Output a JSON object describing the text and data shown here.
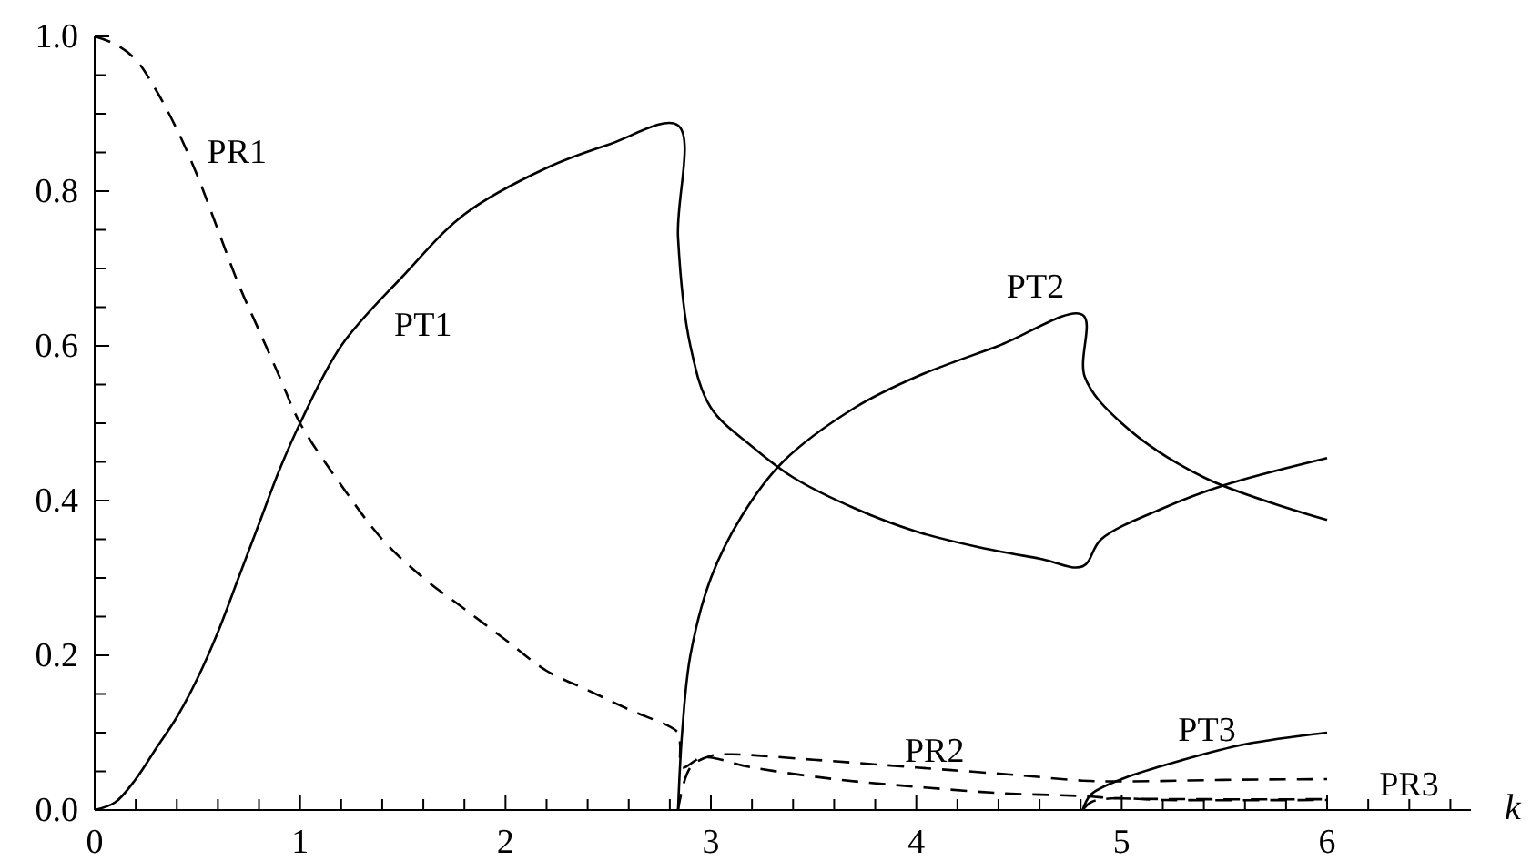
{
  "chart_data": {
    "type": "line",
    "xlabel": "k",
    "xlim": [
      0,
      6.7
    ],
    "ylim": [
      0,
      1.0
    ],
    "xticks": [
      0,
      {
        "value": 0.2,
        "label": null
      },
      {
        "value": 0.4,
        "label": null
      },
      {
        "value": 0.6,
        "label": null
      },
      {
        "value": 0.8,
        "label": null
      },
      1,
      {
        "value": 1.2,
        "label": null
      },
      {
        "value": 1.4,
        "label": null
      },
      {
        "value": 1.6,
        "label": null
      },
      {
        "value": 1.8,
        "label": null
      },
      2,
      {
        "value": 2.2,
        "label": null
      },
      {
        "value": 2.4,
        "label": null
      },
      {
        "value": 2.6,
        "label": null
      },
      {
        "value": 2.8,
        "label": null
      },
      3,
      {
        "value": 3.2,
        "label": null
      },
      {
        "value": 3.4,
        "label": null
      },
      {
        "value": 3.6,
        "label": null
      },
      {
        "value": 3.8,
        "label": null
      },
      4,
      {
        "value": 4.2,
        "label": null
      },
      {
        "value": 4.4,
        "label": null
      },
      {
        "value": 4.6,
        "label": null
      },
      {
        "value": 4.8,
        "label": null
      },
      5,
      {
        "value": 5.2,
        "label": null
      },
      {
        "value": 5.4,
        "label": null
      },
      {
        "value": 5.6,
        "label": null
      },
      {
        "value": 5.8,
        "label": null
      },
      6,
      {
        "value": 6.2,
        "label": null
      },
      {
        "value": 6.4,
        "label": null
      },
      {
        "value": 6.6,
        "label": null
      }
    ],
    "yticks": [
      {
        "value": 0,
        "label": "0.0"
      },
      {
        "value": 0.05,
        "label": null
      },
      {
        "value": 0.1,
        "label": null
      },
      {
        "value": 0.15,
        "label": null
      },
      0.2,
      {
        "value": 0.25,
        "label": null
      },
      {
        "value": 0.3,
        "label": null
      },
      {
        "value": 0.35,
        "label": null
      },
      0.4,
      {
        "value": 0.45,
        "label": null
      },
      {
        "value": 0.5,
        "label": null
      },
      {
        "value": 0.55,
        "label": null
      },
      0.6,
      {
        "value": 0.65,
        "label": null
      },
      {
        "value": 0.7,
        "label": null
      },
      {
        "value": 0.75,
        "label": null
      },
      0.8,
      {
        "value": 0.85,
        "label": null
      },
      {
        "value": 0.9,
        "label": null
      },
      {
        "value": 0.95,
        "label": null
      },
      {
        "value": 1.0,
        "label": "1.0"
      }
    ],
    "grid": false,
    "series": [
      {
        "name": "PT1",
        "color": "#000000",
        "line_style": "solid",
        "x": [
          0,
          0.1,
          0.2,
          0.3,
          0.4,
          0.5,
          0.6,
          0.7,
          0.8,
          0.9,
          1.0,
          1.2,
          1.5,
          1.8,
          2.2,
          2.5,
          2.84,
          2.84,
          2.9,
          3.0,
          3.2,
          3.4,
          3.7,
          4.0,
          4.3,
          4.6,
          4.81,
          4.9,
          5.2,
          5.5,
          6.0
        ],
        "values": [
          0,
          0.01,
          0.04,
          0.08,
          0.12,
          0.17,
          0.23,
          0.3,
          0.37,
          0.44,
          0.5,
          0.6,
          0.69,
          0.77,
          0.83,
          0.86,
          0.885,
          0.74,
          0.6,
          0.52,
          0.47,
          0.43,
          0.39,
          0.36,
          0.34,
          0.325,
          0.315,
          0.35,
          0.39,
          0.42,
          0.455
        ]
      },
      {
        "name": "PT2",
        "color": "#000000",
        "line_style": "solid",
        "x": [
          2.84,
          2.86,
          2.9,
          3.0,
          3.15,
          3.35,
          3.7,
          4.0,
          4.4,
          4.81,
          4.82,
          5.0,
          5.4,
          6.0
        ],
        "values": [
          0,
          0.1,
          0.2,
          0.3,
          0.38,
          0.45,
          0.52,
          0.56,
          0.6,
          0.64,
          0.56,
          0.5,
          0.43,
          0.375
        ]
      },
      {
        "name": "PT3",
        "color": "#000000",
        "line_style": "solid",
        "x": [
          4.81,
          4.85,
          5.0,
          5.3,
          5.6,
          6.0
        ],
        "values": [
          0,
          0.02,
          0.04,
          0.065,
          0.085,
          0.1
        ]
      },
      {
        "name": "PR1",
        "color": "#000000",
        "line_style": "dashed",
        "x": [
          0,
          0.1,
          0.2,
          0.3,
          0.4,
          0.5,
          0.6,
          0.7,
          0.8,
          0.9,
          1.0,
          1.2,
          1.4,
          1.6,
          1.8,
          2.0,
          2.2,
          2.4,
          2.6,
          2.84,
          2.85,
          2.86,
          2.96,
          3.2,
          3.6,
          4.0,
          4.4,
          4.81,
          5.0,
          6.0
        ],
        "values": [
          1.0,
          0.99,
          0.97,
          0.93,
          0.88,
          0.82,
          0.75,
          0.68,
          0.62,
          0.56,
          0.5,
          0.42,
          0.35,
          0.3,
          0.26,
          0.22,
          0.18,
          0.155,
          0.13,
          0.1,
          0.085,
          0.055,
          0.068,
          0.055,
          0.04,
          0.03,
          0.022,
          0.018,
          0.015,
          0.014
        ]
      },
      {
        "name": "PR2",
        "color": "#000000",
        "line_style": "dashed",
        "x": [
          2.84,
          2.9,
          3.0,
          3.1,
          3.5,
          4.0,
          4.5,
          4.81,
          5.0,
          5.5,
          6.0
        ],
        "values": [
          0,
          0.055,
          0.07,
          0.072,
          0.065,
          0.055,
          0.045,
          0.038,
          0.037,
          0.039,
          0.04
        ]
      },
      {
        "name": "PR3",
        "color": "#000000",
        "line_style": "dashed",
        "x": [
          4.81,
          4.85,
          4.95,
          5.2,
          6.0
        ],
        "values": [
          0,
          0.01,
          0.015,
          0.013,
          0.013
        ]
      }
    ]
  }
}
